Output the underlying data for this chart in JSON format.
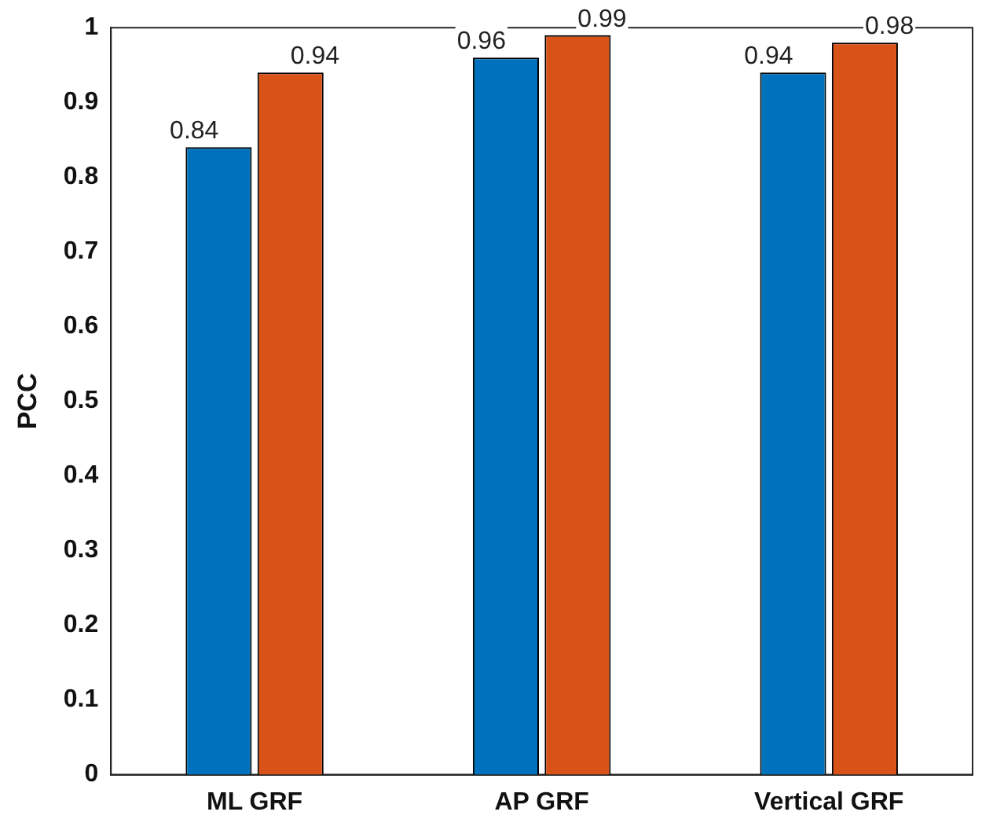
{
  "chart_data": {
    "type": "bar",
    "ylabel": "PCC",
    "categories": [
      "ML GRF",
      "AP GRF",
      "Vertical GRF"
    ],
    "series": [
      {
        "color": "#0072bd",
        "values": [
          0.84,
          0.96,
          0.94
        ]
      },
      {
        "color": "#d95319",
        "values": [
          0.94,
          0.99,
          0.98
        ]
      }
    ],
    "ylim": [
      0,
      1
    ],
    "yticks": [
      0,
      0.1,
      0.2,
      0.3,
      0.4,
      0.5,
      0.6,
      0.7,
      0.8,
      0.9,
      1
    ],
    "grid": false,
    "legend": false,
    "data_labels": true
  }
}
